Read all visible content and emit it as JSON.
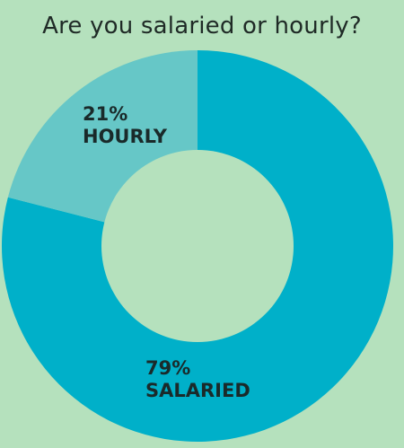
{
  "chart_data": {
    "type": "pie",
    "title": "Are you salaried or hourly?",
    "slices": [
      {
        "name": "SALARIED",
        "value": 79,
        "value_label": "79%",
        "color": "#00b0c9"
      },
      {
        "name": "HOURLY",
        "value": 21,
        "value_label": "21%",
        "color": "#66c7c7"
      }
    ],
    "donut": true,
    "start": "top",
    "direction": "clockwise"
  },
  "colors": {
    "background": "#b5e1bd",
    "text": "#1a2a2a"
  }
}
